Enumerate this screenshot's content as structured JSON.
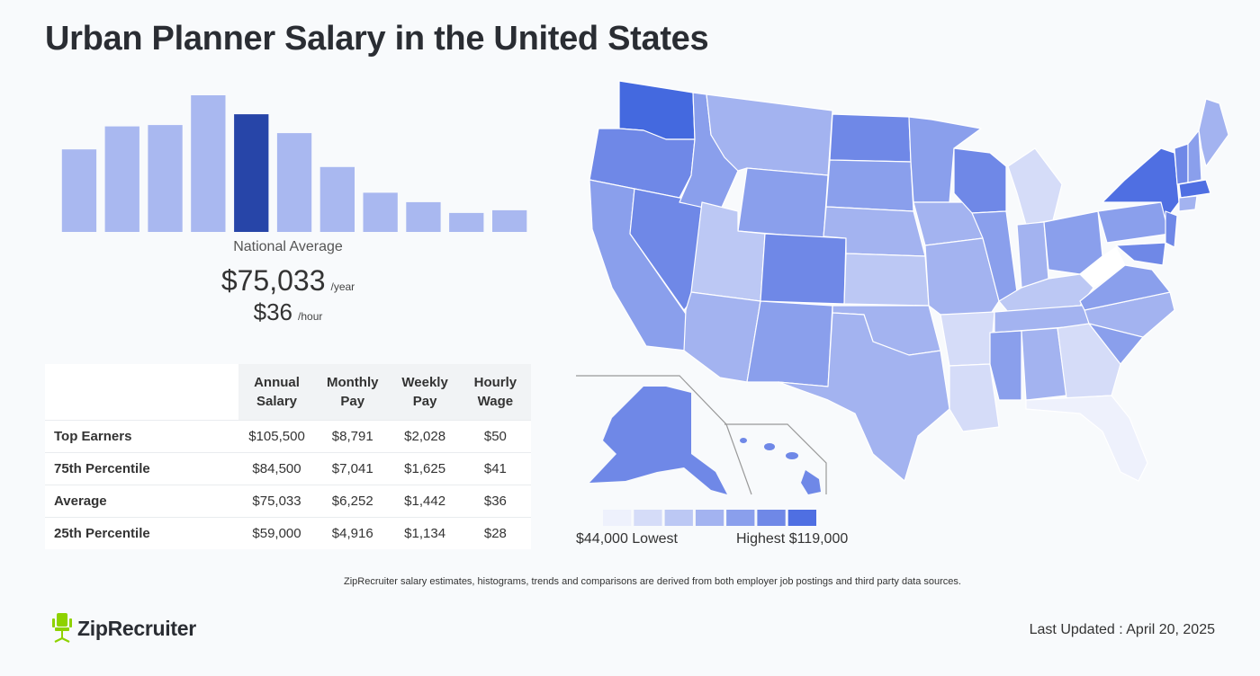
{
  "page": {
    "title": "Urban Planner Salary in the United States",
    "national_average_label": "National Average",
    "annual": "$75,033",
    "annual_unit": "/year",
    "hourly": "$36",
    "hourly_unit": "/hour",
    "footnote": "ZipRecruiter salary estimates, histograms, trends and comparisons are derived from both employer job postings and third party data sources.",
    "logo_text": "ZipRecruiter",
    "last_updated": "Last Updated : April 20, 2025"
  },
  "chart_data": [
    {
      "type": "bar",
      "values": [
        61,
        78,
        79,
        101,
        87,
        73,
        48,
        29,
        22,
        14,
        16
      ],
      "highlight_index": 4,
      "colors": {
        "bar": "#a9b8f0",
        "highlight": "#2745a8"
      }
    },
    {
      "type": "table",
      "columns": [
        "",
        "Annual Salary",
        "Monthly Pay",
        "Weekly Pay",
        "Hourly Wage"
      ],
      "rows": [
        {
          "label": "Top Earners",
          "values": [
            "$105,500",
            "$8,791",
            "$2,028",
            "$50"
          ]
        },
        {
          "label": "75th Percentile",
          "values": [
            "$84,500",
            "$7,041",
            "$1,625",
            "$41"
          ]
        },
        {
          "label": "Average",
          "values": [
            "$75,033",
            "$6,252",
            "$1,442",
            "$36"
          ]
        },
        {
          "label": "25th Percentile",
          "values": [
            "$59,000",
            "$4,916",
            "$1,134",
            "$28"
          ]
        }
      ]
    },
    {
      "type": "heatmap",
      "legend_low": "$44,000 Lowest",
      "legend_high": "Highest $119,000",
      "legend_colors": [
        "#eef1fc",
        "#d5dcf8",
        "#bcc8f4",
        "#a3b3f0",
        "#8a9fec",
        "#6f88e7",
        "#4f6fe2"
      ]
    }
  ]
}
